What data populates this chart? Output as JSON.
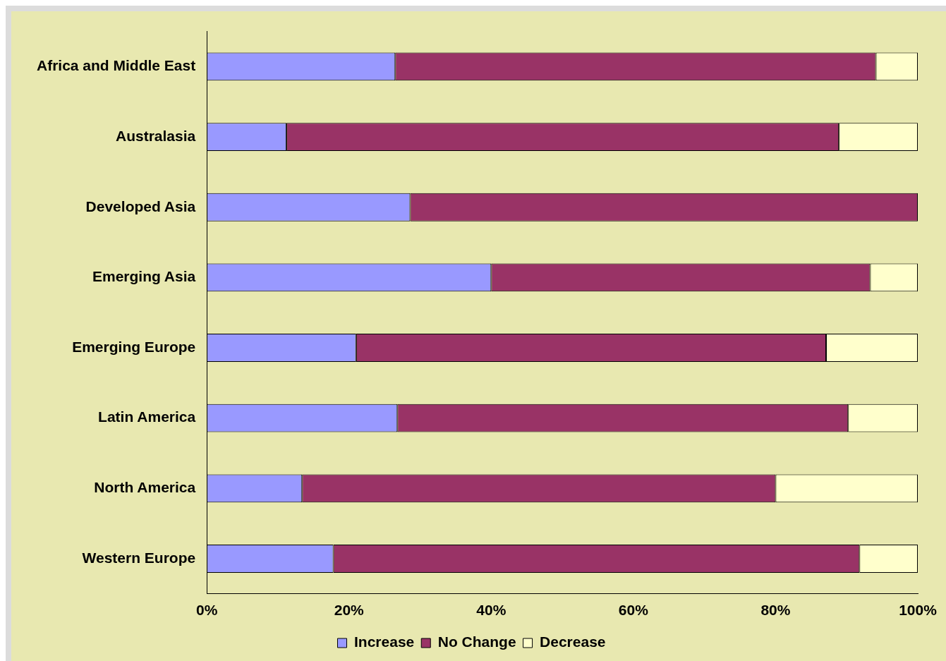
{
  "chart_data": {
    "type": "bar",
    "orientation": "horizontal",
    "stacked": true,
    "categories": [
      "Africa and Middle East",
      "Australasia",
      "Developed Asia",
      "Emerging Asia",
      "Emerging Europe",
      "Latin America",
      "North America",
      "Western Europe"
    ],
    "series": [
      {
        "name": "Increase",
        "color": "#9999ff",
        "values": [
          26.5,
          11.2,
          28.6,
          40.0,
          21.0,
          26.8,
          13.4,
          17.8
        ]
      },
      {
        "name": "No Change",
        "color": "#993366",
        "values": [
          67.6,
          77.7,
          71.4,
          53.3,
          66.1,
          63.4,
          66.6,
          74.0
        ]
      },
      {
        "name": "Decrease",
        "color": "#ffffcc",
        "values": [
          5.9,
          11.1,
          0,
          6.7,
          12.9,
          9.8,
          20.0,
          8.2
        ]
      }
    ],
    "xlim": [
      0,
      100
    ],
    "xticks": [
      {
        "value": 0,
        "label": "0%"
      },
      {
        "value": 20,
        "label": "20%"
      },
      {
        "value": 40,
        "label": "40%"
      },
      {
        "value": 60,
        "label": "60%"
      },
      {
        "value": 80,
        "label": "80%"
      },
      {
        "value": 100,
        "label": "100%"
      }
    ],
    "grid": false,
    "legend": "bottom"
  }
}
